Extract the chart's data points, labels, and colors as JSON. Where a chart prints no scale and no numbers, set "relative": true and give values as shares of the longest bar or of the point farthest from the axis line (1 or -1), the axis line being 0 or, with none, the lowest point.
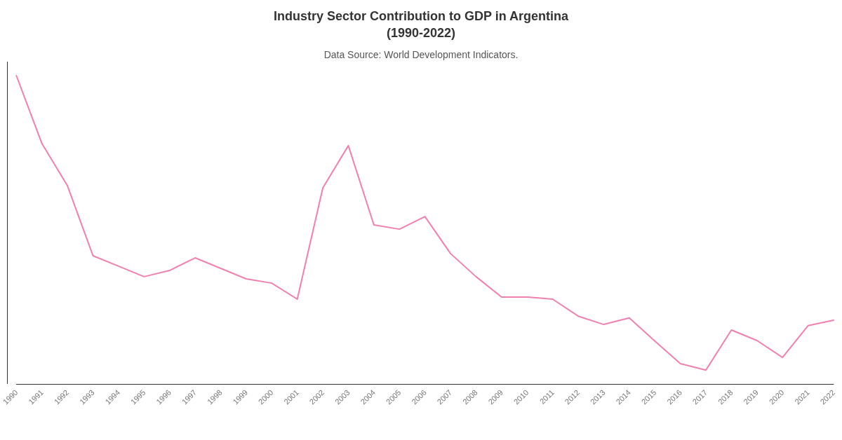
{
  "chart_data": {
    "type": "line",
    "title": "Industry Sector Contribution to GDP in Argentina\n(1990-2022)",
    "subtitle": "Data Source: World Development Indicators.",
    "relative": true,
    "grid": false,
    "marker": "none",
    "line_style": "solid",
    "categories": [
      "1990",
      "1991",
      "1992",
      "1993",
      "1994",
      "1995",
      "1996",
      "1997",
      "1998",
      "1999",
      "2000",
      "2001",
      "2002",
      "2003",
      "2004",
      "2005",
      "2006",
      "2007",
      "2008",
      "2009",
      "2010",
      "2011",
      "2012",
      "2013",
      "2014",
      "2015",
      "2016",
      "2017",
      "2018",
      "2019",
      "2020",
      "2021",
      "2022"
    ],
    "series": [
      {
        "color": "#f080b0",
        "values": [
          1.0,
          0.78,
          0.643,
          0.416,
          0.382,
          0.348,
          0.368,
          0.409,
          0.375,
          0.341,
          0.327,
          0.275,
          0.636,
          0.773,
          0.516,
          0.502,
          0.543,
          0.423,
          0.348,
          0.282,
          0.282,
          0.275,
          0.22,
          0.193,
          0.214,
          0.139,
          0.066,
          0.045,
          0.175,
          0.141,
          0.086,
          0.189,
          0.207
        ]
      }
    ]
  }
}
